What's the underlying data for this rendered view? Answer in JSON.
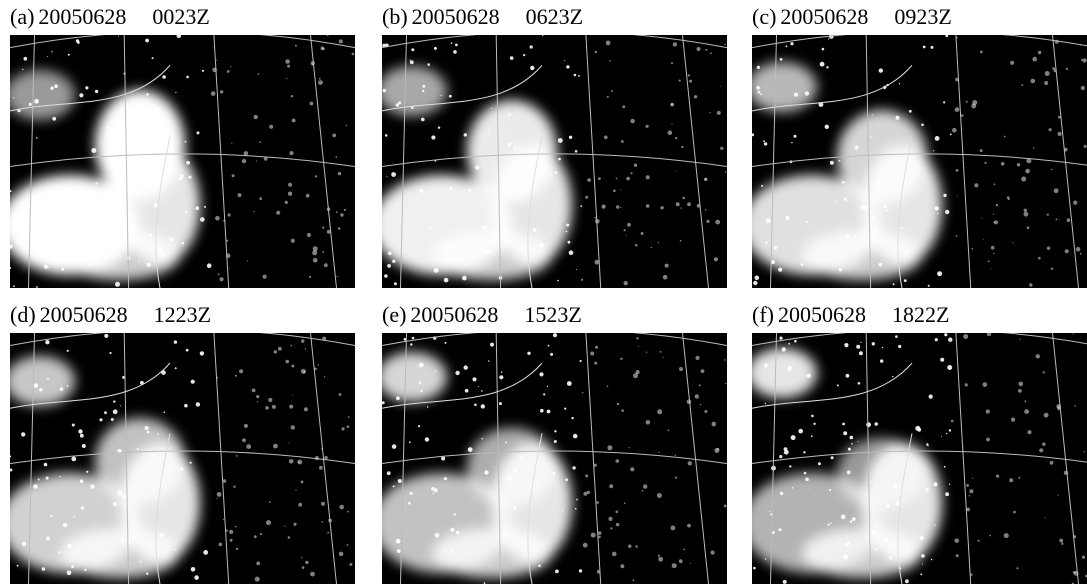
{
  "panels": [
    {
      "label": "(a)",
      "date": "20050628",
      "time": "0023Z"
    },
    {
      "label": "(b)",
      "date": "20050628",
      "time": "0623Z"
    },
    {
      "label": "(c)",
      "date": "20050628",
      "time": "0923Z"
    },
    {
      "label": "(d)",
      "date": "20050628",
      "time": "1223Z"
    },
    {
      "label": "(e)",
      "date": "20050628",
      "time": "1523Z"
    },
    {
      "label": "(f)",
      "date": "20050628",
      "time": "1822Z"
    }
  ]
}
